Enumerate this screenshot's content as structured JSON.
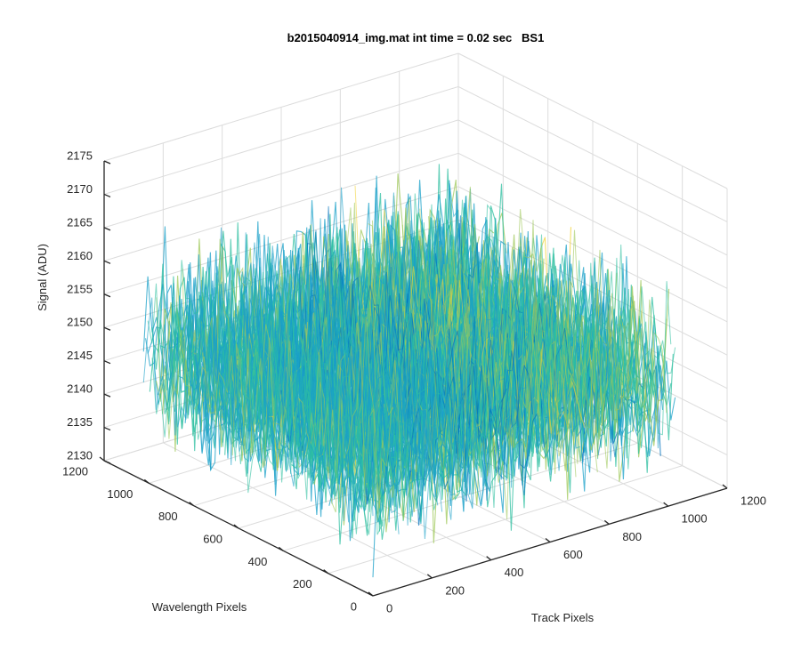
{
  "chart_data": {
    "type": "surface",
    "title": "b2015040914_img.mat int time = 0.02 sec   BS1",
    "xlabel": "Track Pixels",
    "ylabel": "Wavelength Pixels",
    "zlabel": "Signal (ADU)",
    "xlim": [
      0,
      1200
    ],
    "ylim": [
      0,
      1200
    ],
    "zlim": [
      2130,
      2175
    ],
    "x_ticks": [
      "0",
      "200",
      "400",
      "600",
      "800",
      "1000",
      "1200"
    ],
    "y_ticks": [
      "0",
      "200",
      "400",
      "600",
      "800",
      "1000",
      "1200"
    ],
    "z_ticks": [
      "2130",
      "2135",
      "2140",
      "2145",
      "2150",
      "2155",
      "2160",
      "2165",
      "2170",
      "2175"
    ],
    "surface_extent": {
      "x": [
        0,
        1024
      ],
      "y": [
        0,
        1024
      ]
    },
    "surface_mean": 2148,
    "surface_noise_range": [
      2132,
      2170
    ],
    "colormap": [
      "#0072bd",
      "#1aa0c8",
      "#2ebfa0",
      "#9fc85a",
      "#f2d33a"
    ],
    "grid": true,
    "background": "#ffffff"
  }
}
